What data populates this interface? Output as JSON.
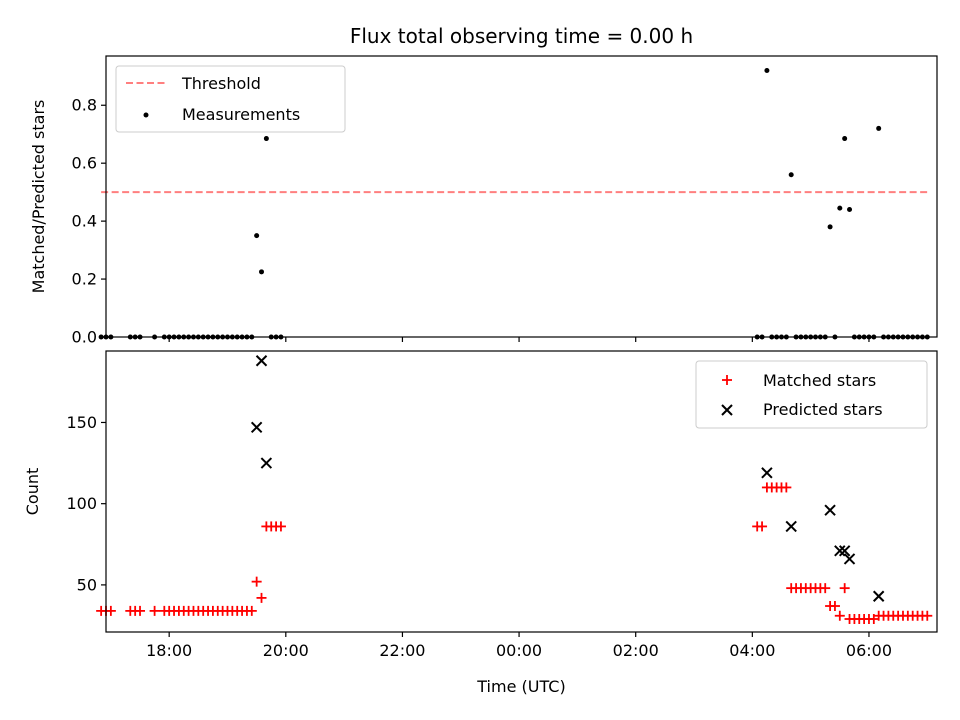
{
  "chart_data": [
    {
      "type": "scatter",
      "title": "Flux total observing time = 0.00 h",
      "xlabel": "",
      "ylabel": "Matched/Predicted stars",
      "x_units": "hours (UTC, continuing past midnight)",
      "xlim": [
        "16:55",
        "07:10"
      ],
      "ylim": [
        0,
        0.97
      ],
      "yticks": [
        "0.0",
        "0.2",
        "0.4",
        "0.6",
        "0.8"
      ],
      "grid": false,
      "legend_position": "upper left",
      "threshold": {
        "name": "Threshold",
        "value": 0.5,
        "x_range": [
          "16:50",
          "07:00"
        ],
        "color": "#ff7f7f",
        "style": "dashed"
      },
      "series": [
        {
          "name": "Measurements",
          "color": "#000000",
          "marker": "dot",
          "points": [
            [
              "16:50",
              0
            ],
            [
              "16:55",
              0
            ],
            [
              "17:00",
              0
            ],
            [
              "17:20",
              0
            ],
            [
              "17:25",
              0
            ],
            [
              "17:30",
              0
            ],
            [
              "17:45",
              0
            ],
            [
              "17:55",
              0
            ],
            [
              "18:00",
              0
            ],
            [
              "18:05",
              0
            ],
            [
              "18:10",
              0
            ],
            [
              "18:15",
              0
            ],
            [
              "18:20",
              0
            ],
            [
              "18:25",
              0
            ],
            [
              "18:30",
              0
            ],
            [
              "18:35",
              0
            ],
            [
              "18:40",
              0
            ],
            [
              "18:45",
              0
            ],
            [
              "18:50",
              0
            ],
            [
              "18:55",
              0
            ],
            [
              "19:00",
              0
            ],
            [
              "19:05",
              0
            ],
            [
              "19:10",
              0
            ],
            [
              "19:15",
              0
            ],
            [
              "19:20",
              0
            ],
            [
              "19:25",
              0
            ],
            [
              "19:30",
              0.35
            ],
            [
              "19:35",
              0.225
            ],
            [
              "19:40",
              0.685
            ],
            [
              "19:45",
              0
            ],
            [
              "19:50",
              0
            ],
            [
              "19:55",
              0
            ],
            [
              "04:05",
              0
            ],
            [
              "04:10",
              0
            ],
            [
              "04:15",
              0.92
            ],
            [
              "04:20",
              0
            ],
            [
              "04:25",
              0
            ],
            [
              "04:30",
              0
            ],
            [
              "04:35",
              0
            ],
            [
              "04:40",
              0.56
            ],
            [
              "04:45",
              0
            ],
            [
              "04:50",
              0
            ],
            [
              "04:55",
              0
            ],
            [
              "05:00",
              0
            ],
            [
              "05:05",
              0
            ],
            [
              "05:10",
              0
            ],
            [
              "05:15",
              0
            ],
            [
              "05:20",
              0.38
            ],
            [
              "05:25",
              0
            ],
            [
              "05:30",
              0.445
            ],
            [
              "05:35",
              0.685
            ],
            [
              "05:40",
              0.44
            ],
            [
              "05:45",
              0
            ],
            [
              "05:50",
              0
            ],
            [
              "05:55",
              0
            ],
            [
              "06:00",
              0
            ],
            [
              "06:05",
              0
            ],
            [
              "06:10",
              0.72
            ],
            [
              "06:15",
              0
            ],
            [
              "06:20",
              0
            ],
            [
              "06:25",
              0
            ],
            [
              "06:30",
              0
            ],
            [
              "06:35",
              0
            ],
            [
              "06:40",
              0
            ],
            [
              "06:45",
              0
            ],
            [
              "06:50",
              0
            ],
            [
              "06:55",
              0
            ],
            [
              "07:00",
              0
            ]
          ]
        }
      ]
    },
    {
      "type": "scatter",
      "title": "",
      "xlabel": "Time (UTC)",
      "ylabel": "Count",
      "x_units": "hours (UTC, continuing past midnight)",
      "xlim": [
        "16:55",
        "07:10"
      ],
      "ylim": [
        21,
        194
      ],
      "xticks": [
        "18:00",
        "20:00",
        "22:00",
        "00:00",
        "02:00",
        "04:00",
        "06:00"
      ],
      "yticks": [
        "50",
        "100",
        "150"
      ],
      "grid": false,
      "legend_position": "upper right",
      "series": [
        {
          "name": "Matched stars",
          "color": "#ff0000",
          "marker": "plus",
          "points": [
            [
              "16:50",
              34
            ],
            [
              "16:55",
              34
            ],
            [
              "17:00",
              34
            ],
            [
              "17:20",
              34
            ],
            [
              "17:25",
              34
            ],
            [
              "17:30",
              34
            ],
            [
              "17:45",
              34
            ],
            [
              "17:55",
              34
            ],
            [
              "18:00",
              34
            ],
            [
              "18:05",
              34
            ],
            [
              "18:10",
              34
            ],
            [
              "18:15",
              34
            ],
            [
              "18:20",
              34
            ],
            [
              "18:25",
              34
            ],
            [
              "18:30",
              34
            ],
            [
              "18:35",
              34
            ],
            [
              "18:40",
              34
            ],
            [
              "18:45",
              34
            ],
            [
              "18:50",
              34
            ],
            [
              "18:55",
              34
            ],
            [
              "19:00",
              34
            ],
            [
              "19:05",
              34
            ],
            [
              "19:10",
              34
            ],
            [
              "19:15",
              34
            ],
            [
              "19:20",
              34
            ],
            [
              "19:25",
              34
            ],
            [
              "19:30",
              52
            ],
            [
              "19:35",
              42
            ],
            [
              "19:40",
              86
            ],
            [
              "19:45",
              86
            ],
            [
              "19:50",
              86
            ],
            [
              "19:55",
              86
            ],
            [
              "04:05",
              86
            ],
            [
              "04:10",
              86
            ],
            [
              "04:15",
              110
            ],
            [
              "04:20",
              110
            ],
            [
              "04:25",
              110
            ],
            [
              "04:30",
              110
            ],
            [
              "04:35",
              110
            ],
            [
              "04:40",
              48
            ],
            [
              "04:45",
              48
            ],
            [
              "04:50",
              48
            ],
            [
              "04:55",
              48
            ],
            [
              "05:00",
              48
            ],
            [
              "05:05",
              48
            ],
            [
              "05:10",
              48
            ],
            [
              "05:15",
              48
            ],
            [
              "05:20",
              37
            ],
            [
              "05:25",
              37
            ],
            [
              "05:30",
              31
            ],
            [
              "05:35",
              48
            ],
            [
              "05:40",
              29
            ],
            [
              "05:45",
              29
            ],
            [
              "05:50",
              29
            ],
            [
              "05:55",
              29
            ],
            [
              "06:00",
              29
            ],
            [
              "06:05",
              29
            ],
            [
              "06:10",
              31
            ],
            [
              "06:15",
              31
            ],
            [
              "06:20",
              31
            ],
            [
              "06:25",
              31
            ],
            [
              "06:30",
              31
            ],
            [
              "06:35",
              31
            ],
            [
              "06:40",
              31
            ],
            [
              "06:45",
              31
            ],
            [
              "06:50",
              31
            ],
            [
              "06:55",
              31
            ],
            [
              "07:00",
              31
            ]
          ]
        },
        {
          "name": "Predicted stars",
          "color": "#000000",
          "marker": "x",
          "points": [
            [
              "19:30",
              147
            ],
            [
              "19:35",
              188
            ],
            [
              "19:40",
              125
            ],
            [
              "04:15",
              119
            ],
            [
              "04:40",
              86
            ],
            [
              "05:20",
              96
            ],
            [
              "05:30",
              71
            ],
            [
              "05:35",
              71
            ],
            [
              "05:40",
              66
            ],
            [
              "06:10",
              43
            ]
          ]
        }
      ]
    }
  ]
}
